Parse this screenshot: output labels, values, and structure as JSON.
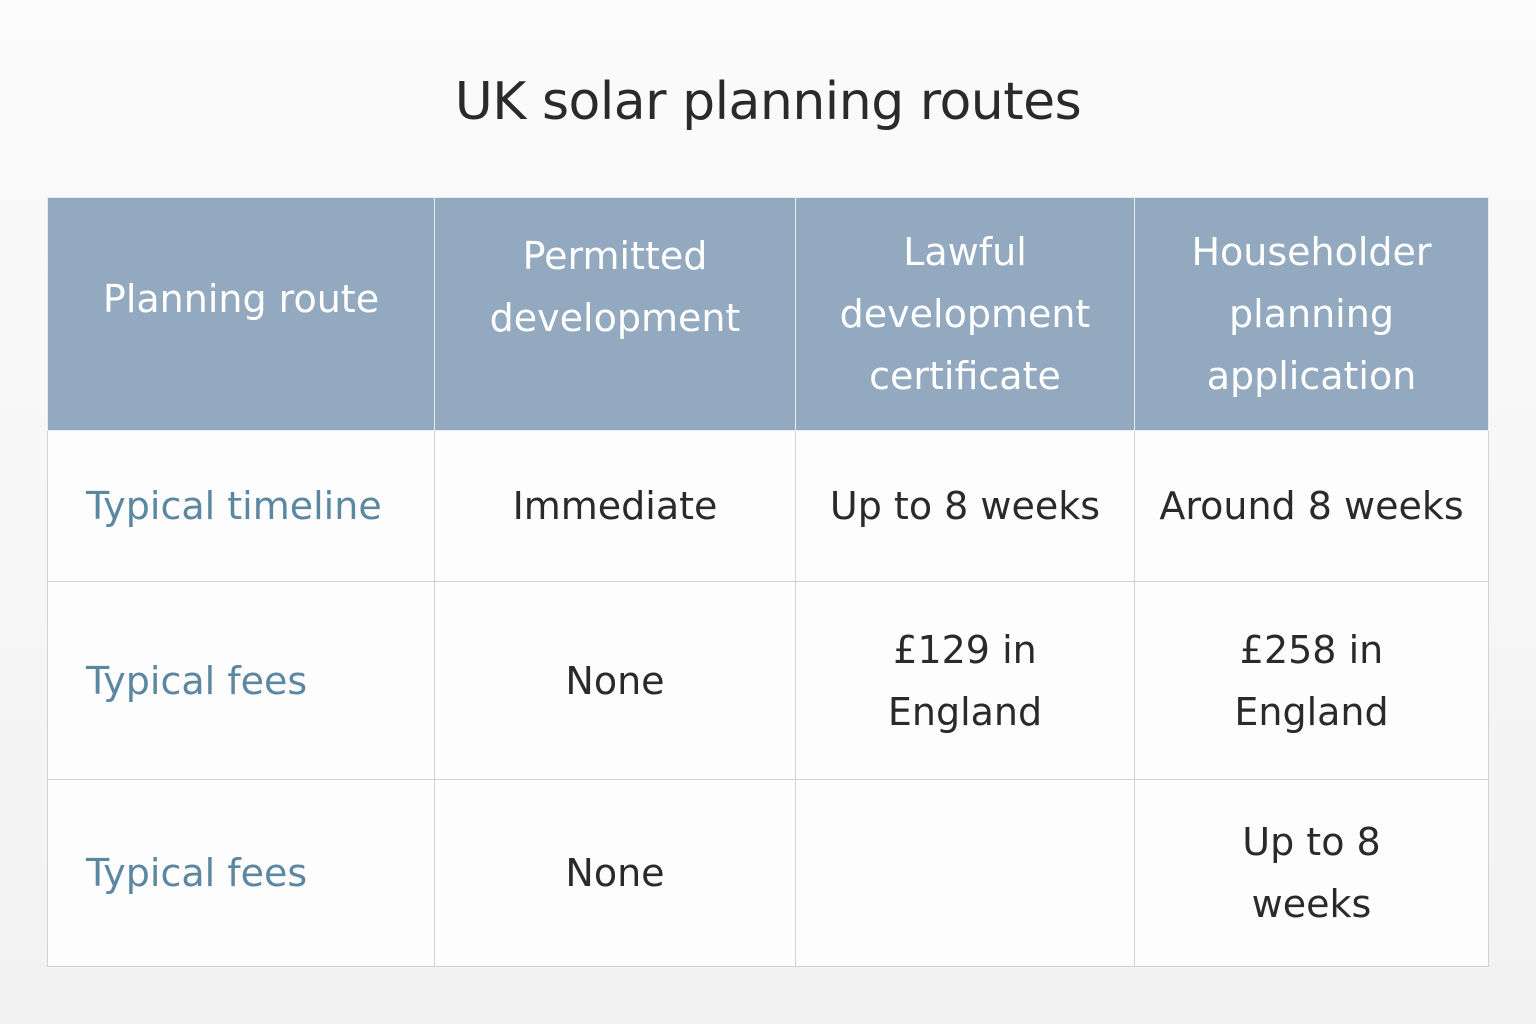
{
  "title": "UK solar planning routes",
  "table": {
    "headers": [
      "Planning route",
      "Permitted development",
      "Lawful development certificate",
      "Householder planning application"
    ],
    "rows": [
      {
        "label": "Typical timeline",
        "cells": [
          "Immediate",
          "Up to 8 weeks",
          "Around 8 weeks"
        ]
      },
      {
        "label": "Typical fees",
        "cells": [
          "None",
          "£129 in England",
          "£258 in England"
        ]
      },
      {
        "label": "Typical fees",
        "cells": [
          "None",
          "",
          "Up to 8 weeks"
        ]
      }
    ]
  },
  "colors": {
    "header_bg": "#93a9bf",
    "row_label": "#5b87a1"
  }
}
